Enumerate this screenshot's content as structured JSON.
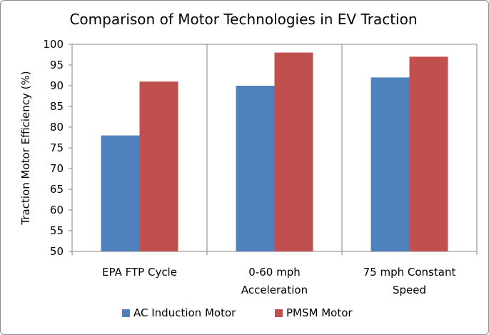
{
  "chart_data": {
    "type": "bar",
    "title": "Comparison of Motor Technologies in EV Traction",
    "xlabel": "",
    "ylabel": "Traction Motor Efficiency (%)",
    "ylim": [
      50,
      100
    ],
    "yticks": [
      50,
      55,
      60,
      65,
      70,
      75,
      80,
      85,
      90,
      95,
      100
    ],
    "categories": [
      [
        "EPA FTP Cycle"
      ],
      [
        "0-60 mph",
        "Acceleration"
      ],
      [
        "75 mph Constant",
        "Speed"
      ]
    ],
    "series": [
      {
        "name": "AC Induction  Motor",
        "color": "#4f81bd",
        "values": [
          78,
          90,
          92
        ]
      },
      {
        "name": "PMSM Motor",
        "color": "#c0504d",
        "values": [
          91,
          98,
          97
        ]
      }
    ],
    "grid": {
      "horizontal": false,
      "vertical": true
    },
    "legend_position": "bottom"
  }
}
